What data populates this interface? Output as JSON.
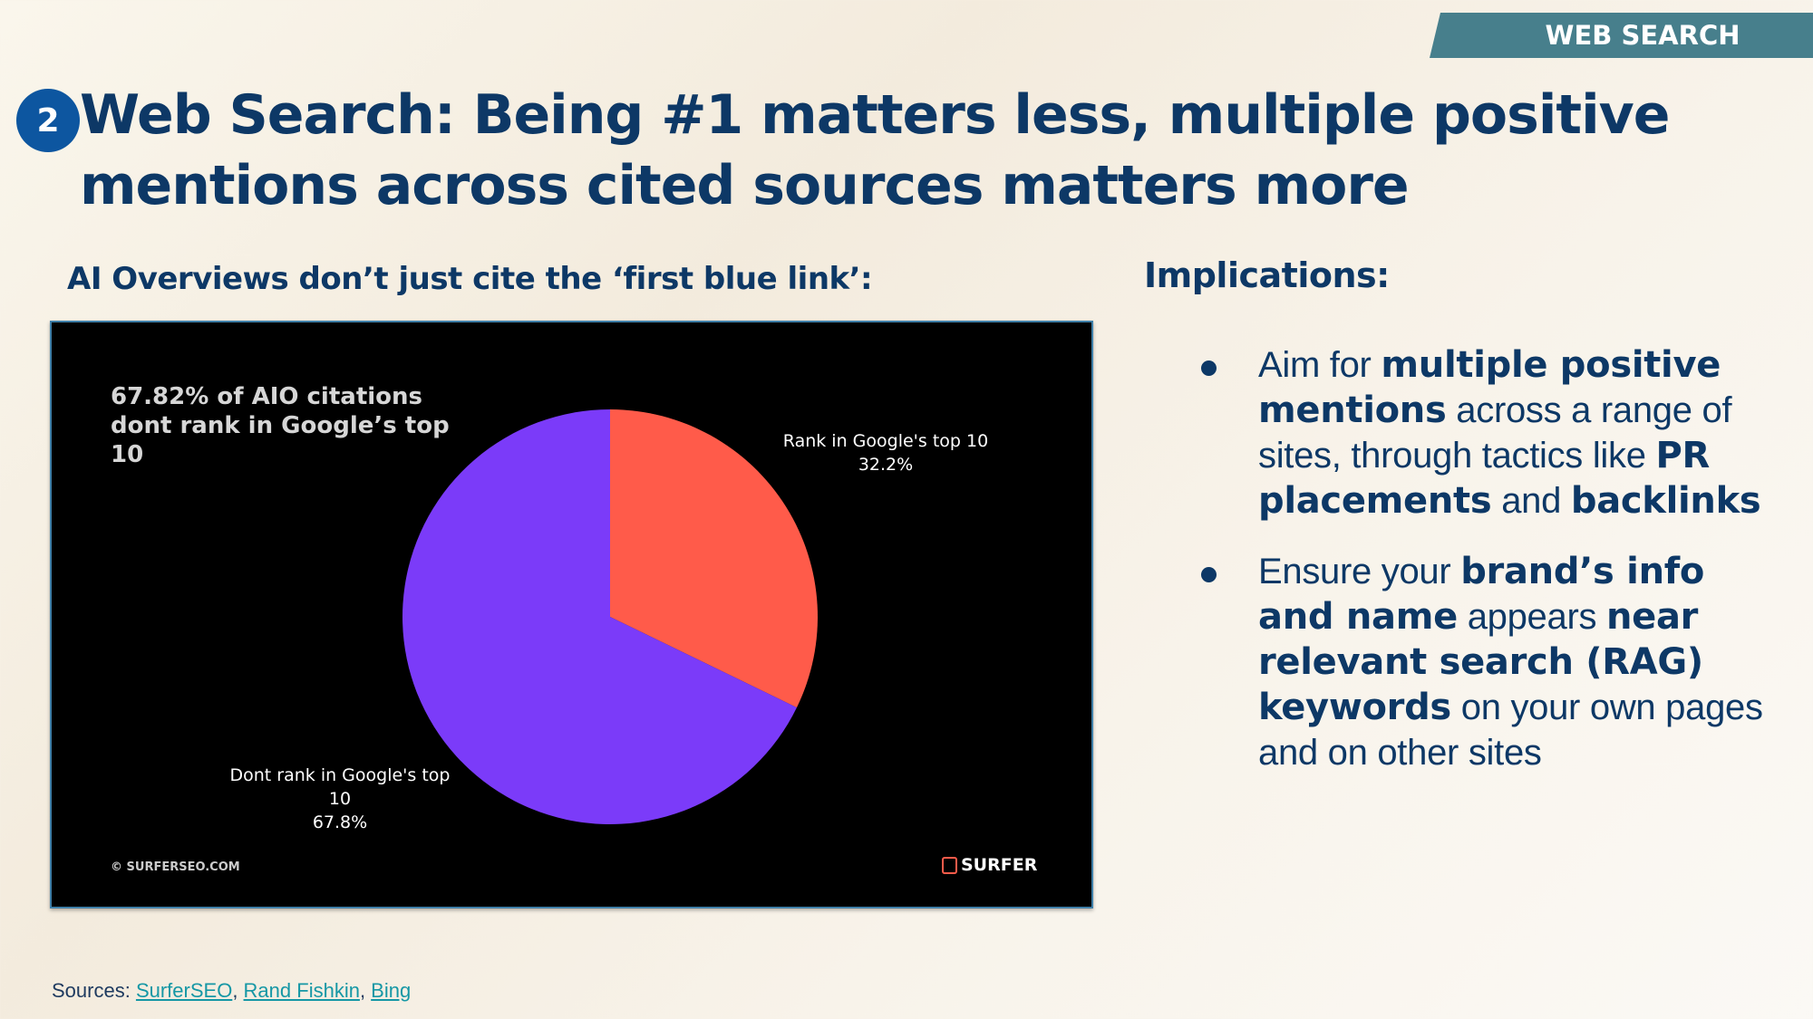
{
  "tag": "WEB SEARCH",
  "badge": "2",
  "title": "Web Search: Being #1 matters less, multiple positive mentions across cited sources matters more",
  "subheading": "AI Overviews don’t just cite the ‘first blue link’:",
  "implications_heading": "Implications:",
  "chart_data": {
    "type": "pie",
    "annotation": "67.82% of AIO citations dont rank in Google’s top 10",
    "slices": [
      {
        "label": "Rank in Google's top 10",
        "value": 32.2,
        "value_label": "32.2%",
        "color": "#ff5b4a"
      },
      {
        "label": "Dont rank in Google's top 10",
        "value": 67.8,
        "value_label": "67.8%",
        "color": "#7b3bf9"
      }
    ],
    "copyright": "© SURFERSEO.COM",
    "logo": "SURFER"
  },
  "bullets": [
    {
      "parts": [
        {
          "t": "Aim for ",
          "b": false
        },
        {
          "t": "multiple positive mentions",
          "b": true
        },
        {
          "t": " across a range of sites, through tactics like ",
          "b": false
        },
        {
          "t": "PR placements",
          "b": true
        },
        {
          "t": " and ",
          "b": false
        },
        {
          "t": "backlinks",
          "b": true
        }
      ]
    },
    {
      "parts": [
        {
          "t": "Ensure your ",
          "b": false
        },
        {
          "t": "brand’s info and name",
          "b": true
        },
        {
          "t": " appears ",
          "b": false
        },
        {
          "t": "near relevant search (RAG) keywords",
          "b": true
        },
        {
          "t": " on your own pages and on other sites",
          "b": false
        }
      ]
    }
  ],
  "sources": {
    "label": "Sources: ",
    "links": [
      "SurferSEO",
      "Rand Fishkin",
      "Bing"
    ],
    "separator": ", "
  }
}
